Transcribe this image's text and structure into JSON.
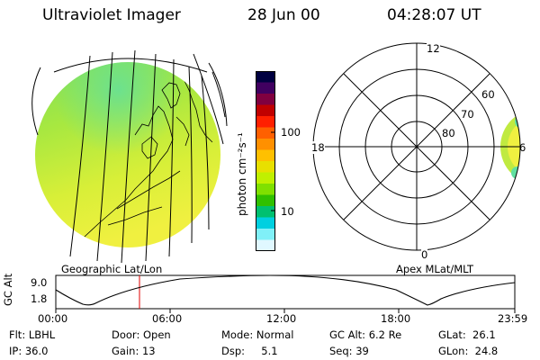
{
  "header": {
    "title": "Ultraviolet Imager",
    "date": "28 Jun 00",
    "time": "04:28:07 UT"
  },
  "left_panel_label": "Geographic Lat/Lon",
  "right_panel_label": "Apex MLat/MLT",
  "colorbar": {
    "unit_label": "photon cm⁻²s⁻¹",
    "ticks": [
      "100",
      "10"
    ],
    "colors": [
      "#000040",
      "#400060",
      "#800040",
      "#c00000",
      "#ff2000",
      "#ff6000",
      "#ff9000",
      "#ffc000",
      "#e8e000",
      "#c0f000",
      "#80e000",
      "#30c000",
      "#00c070",
      "#00d0e0",
      "#80f0f8",
      "#e0f8ff"
    ]
  },
  "polar": {
    "mlt_labels": [
      "12",
      "18",
      "6",
      "0"
    ],
    "lat_labels": [
      "60",
      "70",
      "80"
    ]
  },
  "altitude_plot": {
    "ylabel": "GC Alt",
    "yticks": [
      "9.0",
      "1.8"
    ],
    "xticks": [
      "00:00",
      "06:00",
      "12:00",
      "18:00",
      "23:59"
    ],
    "marker_color": "#e00000"
  },
  "info": {
    "flt": "Flt: LBHL",
    "door": "Door: Open",
    "mode": "Mode: Normal",
    "gcalt": "GC Alt: 6.2 Re",
    "glat": "GLat:  26.1",
    "ip": "IP: 36.0",
    "gain": "Gain: 13",
    "dsp": "Dsp:     5.1",
    "seq": "Seq: 39",
    "glon": "GLon:  24.8"
  }
}
